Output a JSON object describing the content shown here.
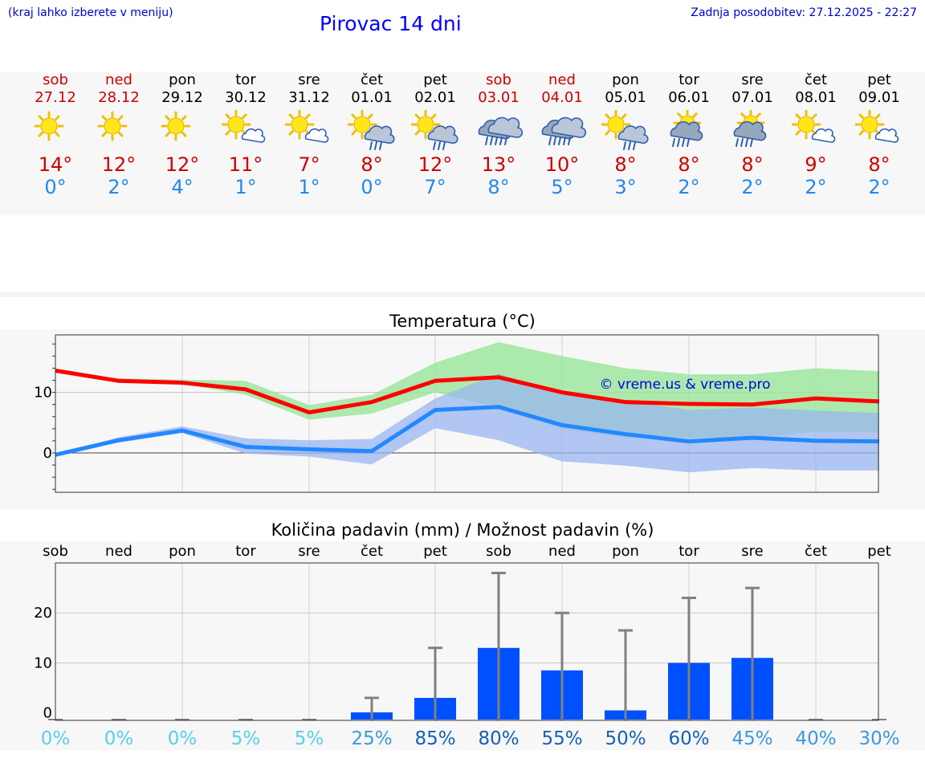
{
  "header": {
    "hint": "(kraj lahko izberete v meniju)",
    "title": "Pirovac 14 dni",
    "updated": "Zadnja posodobitev: 27.12.2025 - 22:27"
  },
  "colors": {
    "weekend": "#cc0000",
    "tmax": "#ff0000",
    "tmin": "#2288ff",
    "band_max": "#99e599",
    "band_min": "#99b5f0",
    "bar": "#0050ff",
    "whisker": "#808080",
    "watermark": "#0000dd"
  },
  "days": [
    {
      "name": "sob",
      "date": "27.12",
      "weekend": true,
      "icon": "sun-icon",
      "max": "14°",
      "min": "0°"
    },
    {
      "name": "ned",
      "date": "28.12",
      "weekend": true,
      "icon": "sun-icon",
      "max": "12°",
      "min": "2°"
    },
    {
      "name": "pon",
      "date": "29.12",
      "weekend": false,
      "icon": "sun-icon",
      "max": "12°",
      "min": "4°"
    },
    {
      "name": "tor",
      "date": "30.12",
      "weekend": false,
      "icon": "sun-cloud-icon",
      "max": "11°",
      "min": "1°"
    },
    {
      "name": "sre",
      "date": "31.12",
      "weekend": false,
      "icon": "sun-cloud-icon",
      "max": "7°",
      "min": "1°"
    },
    {
      "name": "čet",
      "date": "01.01",
      "weekend": false,
      "icon": "sun-cloud-rain-icon",
      "max": "8°",
      "min": "0°"
    },
    {
      "name": "pet",
      "date": "02.01",
      "weekend": false,
      "icon": "sun-cloud-rain-icon",
      "max": "12°",
      "min": "7°"
    },
    {
      "name": "sob",
      "date": "03.01",
      "weekend": true,
      "icon": "cloud-rain-icon",
      "max": "13°",
      "min": "8°"
    },
    {
      "name": "ned",
      "date": "04.01",
      "weekend": true,
      "icon": "cloud-rain-icon",
      "max": "10°",
      "min": "5°"
    },
    {
      "name": "pon",
      "date": "05.01",
      "weekend": false,
      "icon": "sun-cloud-rain-icon",
      "max": "8°",
      "min": "3°"
    },
    {
      "name": "tor",
      "date": "06.01",
      "weekend": false,
      "icon": "sun-cloud-heavy-rain-icon",
      "max": "8°",
      "min": "2°"
    },
    {
      "name": "sre",
      "date": "07.01",
      "weekend": false,
      "icon": "sun-cloud-heavy-rain-icon",
      "max": "8°",
      "min": "2°"
    },
    {
      "name": "čet",
      "date": "08.01",
      "weekend": false,
      "icon": "sun-cloud-icon",
      "max": "9°",
      "min": "2°"
    },
    {
      "name": "pet",
      "date": "09.01",
      "weekend": false,
      "icon": "sun-cloud-icon",
      "max": "8°",
      "min": "2°"
    }
  ],
  "chart_data": [
    {
      "type": "line",
      "title": "Temperatura (°C)",
      "ylim": [
        -6.5,
        19.5
      ],
      "yticks": [
        0,
        10
      ],
      "watermark": "© vreme.us & vreme.pro",
      "series": [
        {
          "name": "max",
          "values": [
            13.6,
            11.9,
            11.6,
            10.5,
            6.7,
            8.4,
            11.9,
            12.5,
            10.0,
            8.4,
            8.1,
            8.0,
            9.0,
            8.5
          ],
          "band_low": [
            13.6,
            11.6,
            11.4,
            9.6,
            5.5,
            6.5,
            10.0,
            7.5,
            4.0,
            2.5,
            2.5,
            2.5,
            3.5,
            3.5
          ],
          "band_high": [
            13.6,
            12.3,
            12.1,
            11.9,
            7.9,
            9.6,
            14.9,
            18.3,
            16.0,
            14.0,
            13.0,
            13.0,
            14.0,
            13.5
          ]
        },
        {
          "name": "min",
          "values": [
            -0.3,
            2.1,
            3.7,
            1.0,
            0.6,
            0.3,
            7.1,
            7.6,
            4.6,
            3.1,
            1.9,
            2.5,
            2.0,
            1.9
          ],
          "band_low": [
            -0.3,
            1.7,
            3.3,
            -0.1,
            -0.6,
            -1.9,
            4.1,
            2.1,
            -1.4,
            -2.1,
            -3.2,
            -2.5,
            -2.9,
            -2.9
          ],
          "band_high": [
            -0.3,
            2.6,
            4.4,
            2.4,
            2.1,
            2.3,
            9.0,
            13.1,
            9.6,
            8.6,
            7.1,
            7.5,
            7.0,
            6.6
          ]
        }
      ]
    },
    {
      "type": "bar",
      "title": "Količina padavin (mm) / Možnost padavin (%)",
      "categories": [
        "sob",
        "ned",
        "pon",
        "tor",
        "sre",
        "čet",
        "pet",
        "sob",
        "ned",
        "pon",
        "tor",
        "sre",
        "čet",
        "pet"
      ],
      "values": [
        0,
        0,
        0,
        0,
        0,
        0.1,
        3.0,
        13.0,
        8.5,
        0.5,
        10.0,
        11.0,
        0,
        0
      ],
      "whisker_max": [
        0,
        0,
        0,
        0,
        0,
        3.0,
        13.0,
        28.0,
        20.0,
        16.5,
        23.0,
        25.0,
        0,
        0
      ],
      "probability": [
        "0%",
        "0%",
        "0%",
        "5%",
        "5%",
        "25%",
        "85%",
        "80%",
        "55%",
        "50%",
        "60%",
        "45%",
        "40%",
        "30%"
      ],
      "probability_values": [
        0,
        0,
        0,
        5,
        5,
        25,
        85,
        80,
        55,
        50,
        60,
        45,
        40,
        30
      ],
      "ylim": [
        -1.5,
        30
      ],
      "yticks": [
        0,
        10,
        20
      ]
    }
  ]
}
